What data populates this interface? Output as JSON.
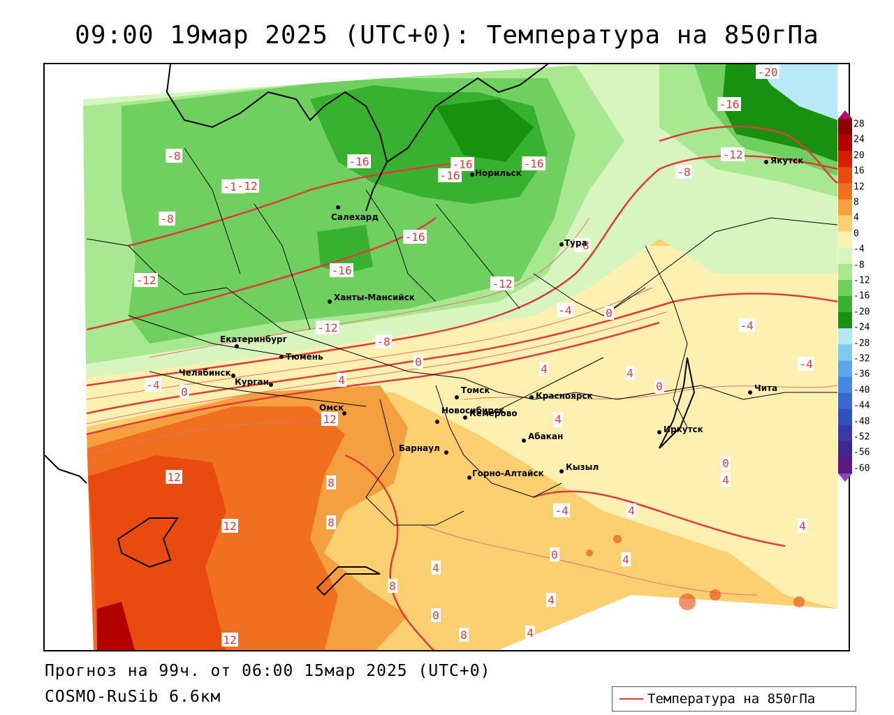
{
  "title": "09:00 19мар 2025 (UTC+0): Температура на 850гПа",
  "footer": {
    "forecast": "Прогноз на 99ч. от 06:00 15мар 2025 (UTC+0)",
    "model": "COSMO-RuSib 6.6км"
  },
  "legend": {
    "label": "Температура на 850гПа",
    "line_color": "#e03a3a"
  },
  "colorbar": {
    "labels": [
      "28",
      "24",
      "20",
      "16",
      "12",
      "8",
      "4",
      "0",
      "-4",
      "-8",
      "-12",
      "-16",
      "-20",
      "-24",
      "-28",
      "-32",
      "-36",
      "-40",
      "-44",
      "-48",
      "-52",
      "-56",
      "-60"
    ],
    "colors": [
      "#c0006a",
      "#8b0000",
      "#b30000",
      "#d42000",
      "#e84a10",
      "#f07020",
      "#f5a040",
      "#fcd070",
      "#fdf0b0",
      "#d8f5c0",
      "#a8e890",
      "#6fd060",
      "#38b030",
      "#189010",
      "#b8e8f8",
      "#80c8f0",
      "#5aa8e8",
      "#4488e0",
      "#3a68d0",
      "#3050c0",
      "#3838a8",
      "#402890",
      "#5a1a80",
      "#9040c0"
    ]
  },
  "cities": [
    {
      "name": "Норильск"
    },
    {
      "name": "Якутск"
    },
    {
      "name": "Салехард"
    },
    {
      "name": "Тура"
    },
    {
      "name": "Ханты-Мансийск"
    },
    {
      "name": "Екатеринбург"
    },
    {
      "name": "Тюмень"
    },
    {
      "name": "Челябинск"
    },
    {
      "name": "Курган"
    },
    {
      "name": "Томск"
    },
    {
      "name": "Красноярск"
    },
    {
      "name": "Чита"
    },
    {
      "name": "Омск"
    },
    {
      "name": "Новосибирск"
    },
    {
      "name": "Кемерово"
    },
    {
      "name": "Иркутск"
    },
    {
      "name": "Абакан"
    },
    {
      "name": "Барнаул"
    },
    {
      "name": "Кызыл"
    },
    {
      "name": "Горно-Алтайск"
    }
  ],
  "isotherm_labels": [
    "-20",
    "-16",
    "-16",
    "-16",
    "-16",
    "-16",
    "-16",
    "-16",
    "-12",
    "-12",
    "-12",
    "-12",
    "-12",
    "-12",
    "-8",
    "-8",
    "-8",
    "-8",
    "-8",
    "-4",
    "-4",
    "-4",
    "-4",
    "-4",
    "0",
    "0",
    "0",
    "0",
    "0",
    "0",
    "0",
    "0",
    "4",
    "4",
    "4",
    "4",
    "4",
    "4",
    "4",
    "4",
    "4",
    "4",
    "4",
    "8",
    "8",
    "8",
    "8",
    "12",
    "12",
    "12",
    "12"
  ]
}
